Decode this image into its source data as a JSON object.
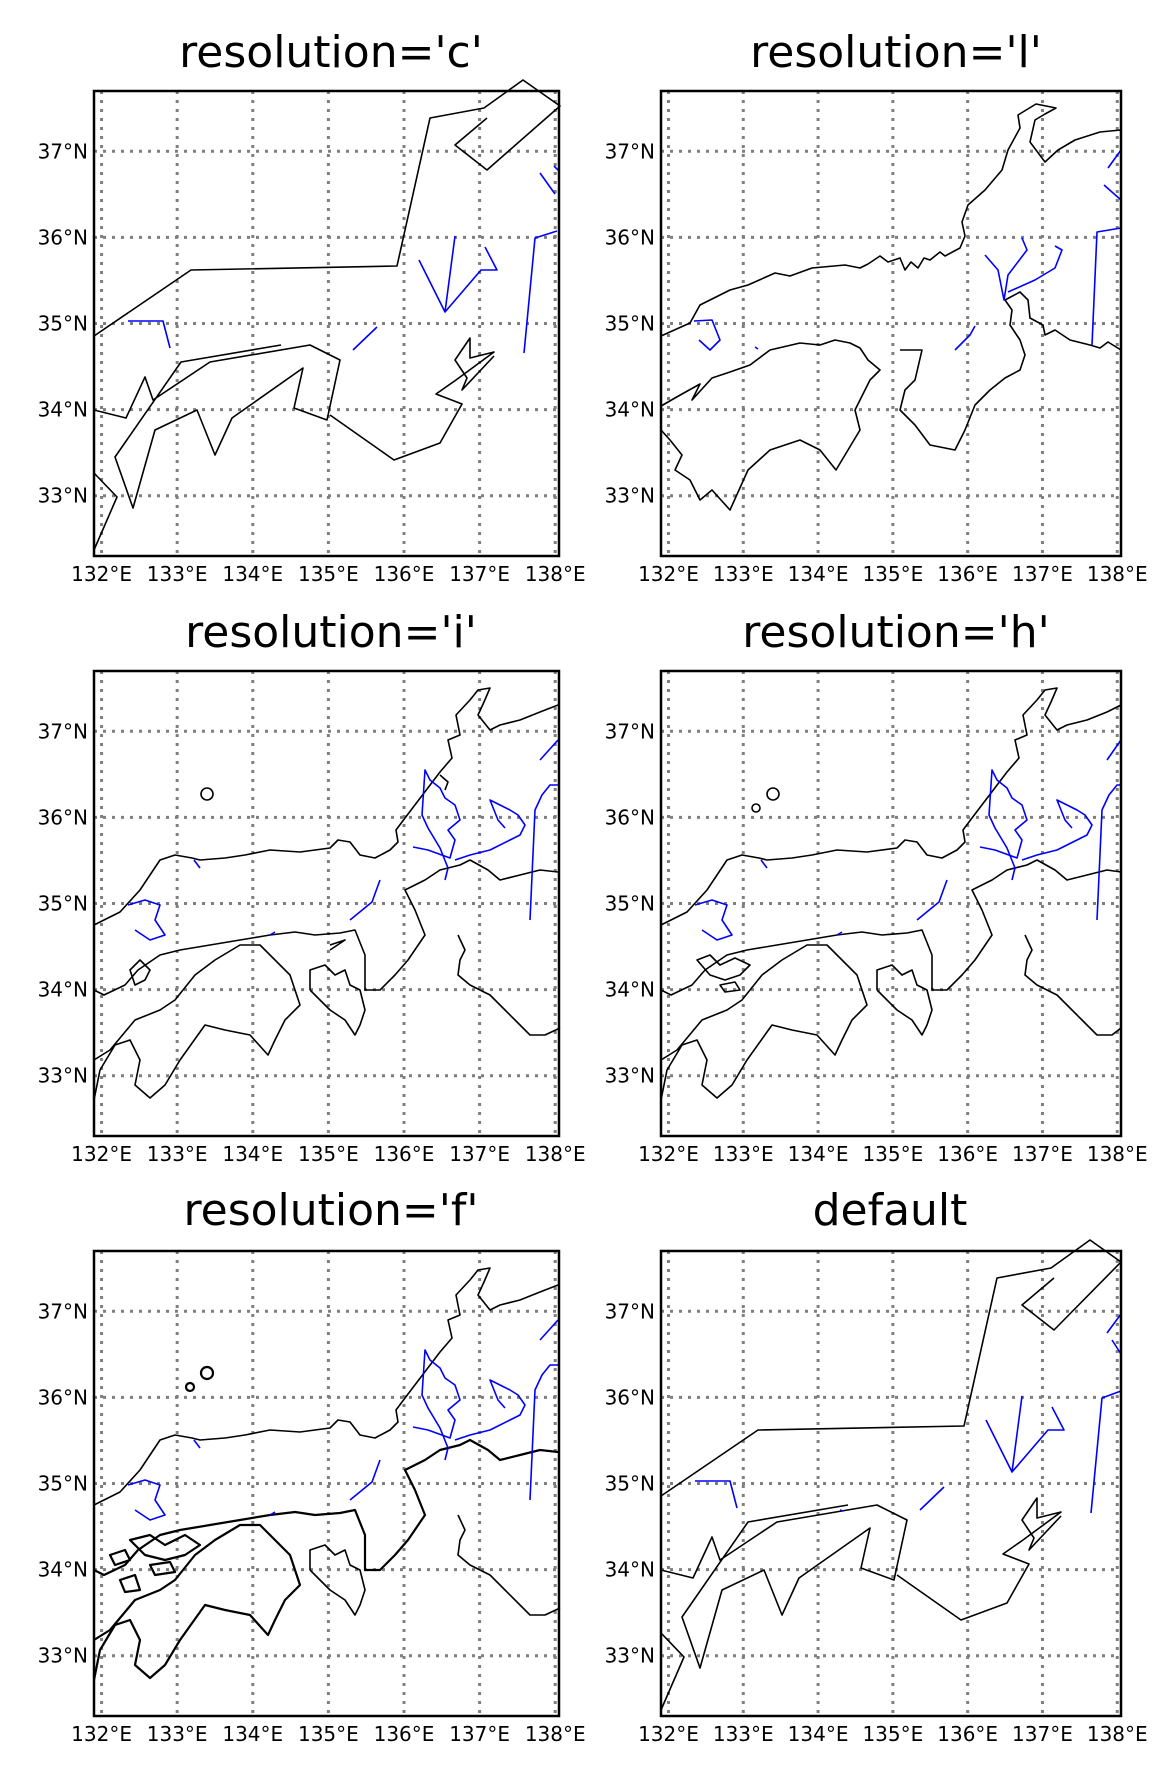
{
  "figure": {
    "panels": [
      {
        "id": "c",
        "title": "resolution='c'"
      },
      {
        "id": "l",
        "title": "resolution='l'"
      },
      {
        "id": "i",
        "title": "resolution='i'"
      },
      {
        "id": "h",
        "title": "resolution='h'"
      },
      {
        "id": "f",
        "title": "resolution='f'"
      },
      {
        "id": "default",
        "title": "default"
      }
    ],
    "lat_ticks": [
      "37°N",
      "36°N",
      "35°N",
      "34°N",
      "33°N"
    ],
    "lon_ticks": [
      "132°E",
      "133°E",
      "134°E",
      "135°E",
      "136°E",
      "137°E",
      "138°E"
    ],
    "colors": {
      "coastline": "#000000",
      "rivers": "#0000ff",
      "gridlines": "#7f7f7f",
      "frame": "#000000"
    }
  },
  "chart_data": {
    "type": "map",
    "projection": "lat-lon",
    "lon_range": [
      131.9,
      138.05
    ],
    "lat_range": [
      32.3,
      37.7
    ],
    "gridlines": "dotted",
    "meridians": [
      132,
      133,
      134,
      135,
      136,
      137,
      138
    ],
    "parallels": [
      33,
      34,
      35,
      36,
      37
    ],
    "layers": [
      "coastlines",
      "rivers"
    ]
  }
}
